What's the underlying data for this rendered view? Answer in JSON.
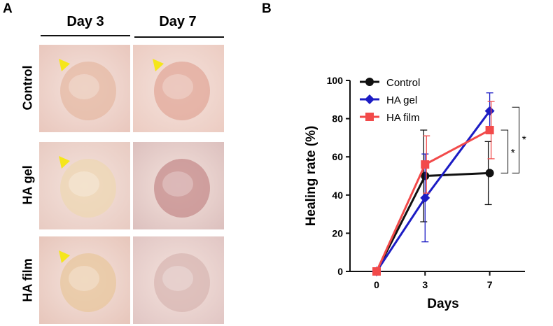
{
  "panels": {
    "a_label": "A",
    "b_label": "B"
  },
  "photo_grid": {
    "columns": [
      "Day 3",
      "Day 7"
    ],
    "rows": [
      "Control",
      "HA gel",
      "HA film"
    ],
    "arrow_color": "#f5e61a",
    "cells": [
      {
        "name": "photo-control-day3",
        "arrow": true,
        "tone": "#e9c7bd",
        "wound": "#e6b9a4"
      },
      {
        "name": "photo-control-day7",
        "arrow": true,
        "tone": "#ecccc2",
        "wound": "#e2a89a"
      },
      {
        "name": "photo-hagel-day3",
        "arrow": true,
        "tone": "#e8cbc2",
        "wound": "#eed7b3"
      },
      {
        "name": "photo-hagel-day7",
        "arrow": false,
        "tone": "#dcc0be",
        "wound": "#c58c8c"
      },
      {
        "name": "photo-hafilm-day3",
        "arrow": true,
        "tone": "#e7c6bb",
        "wound": "#e8c79d"
      },
      {
        "name": "photo-hafilm-day7",
        "arrow": false,
        "tone": "#e1c6c4",
        "wound": "#d8b7b3"
      }
    ]
  },
  "chart_data": {
    "type": "line",
    "x": [
      0,
      3,
      7
    ],
    "xticks": [
      "0",
      "3",
      "7"
    ],
    "xlabel": "Days",
    "ylabel": "Healing rate (%)",
    "ylim": [
      0,
      100
    ],
    "yticks": [
      "0",
      "20",
      "40",
      "60",
      "80",
      "100"
    ],
    "legend_position": "top-left",
    "series": [
      {
        "name": "Control",
        "color": "#111111",
        "marker": "circle",
        "values": [
          0,
          50,
          51.5
        ],
        "err": [
          0,
          24,
          16.5
        ]
      },
      {
        "name": "HA gel",
        "color": "#1c1cc4",
        "marker": "diamond",
        "values": [
          0,
          38.5,
          84
        ],
        "err": [
          0,
          23,
          9.5
        ]
      },
      {
        "name": "HA film",
        "color": "#f24a4a",
        "marker": "square",
        "values": [
          0,
          56,
          74
        ],
        "err": [
          0,
          15,
          15
        ]
      }
    ],
    "annotations": [
      "*",
      "*"
    ]
  }
}
